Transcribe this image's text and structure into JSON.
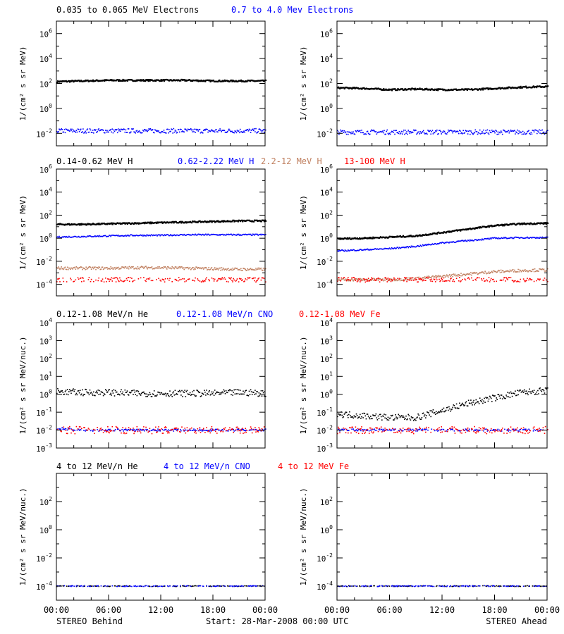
{
  "colors": {
    "black": "#000000",
    "blue": "#0000ff",
    "brown": "#c08060",
    "red": "#ff0000"
  },
  "panels": [
    {
      "legend": [
        {
          "text": "0.035 to 0.065 MeV Electrons",
          "color": "black"
        },
        {
          "text": "0.7 to 4.0 Mev Electrons",
          "color": "blue"
        }
      ],
      "ylabel": "1/(cm² s sr MeV)",
      "scale": "log",
      "ylim": [
        -3,
        7
      ],
      "ticks": [
        {
          "v": 6,
          "label": "10",
          "exp": "6"
        },
        {
          "v": 4,
          "label": "10",
          "exp": "4"
        },
        {
          "v": 2,
          "label": "10",
          "exp": "2"
        },
        {
          "v": 0,
          "label": "10",
          "exp": "0"
        },
        {
          "v": -2,
          "label": "10",
          "exp": "-2"
        }
      ]
    },
    {
      "legend": [
        {
          "text": "0.14-0.62 MeV H",
          "color": "black"
        },
        {
          "text": "0.62-2.22 MeV H",
          "color": "blue"
        },
        {
          "text": "2.2-12 MeV H",
          "color": "brown"
        },
        {
          "text": "13-100 MeV H",
          "color": "red"
        }
      ],
      "ylabel": "1/(cm² s sr MeV)",
      "scale": "log",
      "ylim": [
        -5,
        6
      ],
      "ticks": [
        {
          "v": 6,
          "label": "10",
          "exp": "6"
        },
        {
          "v": 4,
          "label": "10",
          "exp": "4"
        },
        {
          "v": 2,
          "label": "10",
          "exp": "2"
        },
        {
          "v": 0,
          "label": "10",
          "exp": "0"
        },
        {
          "v": -2,
          "label": "10",
          "exp": "-2"
        },
        {
          "v": -4,
          "label": "10",
          "exp": "-4"
        }
      ]
    },
    {
      "legend": [
        {
          "text": "0.12-1.08 MeV/n He",
          "color": "black"
        },
        {
          "text": "0.12-1.08 MeV/n CNO",
          "color": "blue"
        },
        {
          "text": "0.12-1.08 MeV Fe",
          "color": "red"
        }
      ],
      "ylabel": "1/(cm² s sr MeV/nuc.)",
      "scale": "log",
      "ylim": [
        -3,
        4
      ],
      "ticks": [
        {
          "v": 4,
          "label": "10",
          "exp": "4"
        },
        {
          "v": 3,
          "label": "10",
          "exp": "3"
        },
        {
          "v": 2,
          "label": "10",
          "exp": "2"
        },
        {
          "v": 1,
          "label": "10",
          "exp": "1"
        },
        {
          "v": 0,
          "label": "10",
          "exp": "0"
        },
        {
          "v": -1,
          "label": "10",
          "exp": "-1"
        },
        {
          "v": -2,
          "label": "10",
          "exp": "-2"
        },
        {
          "v": -3,
          "label": "10",
          "exp": "-3"
        }
      ]
    },
    {
      "legend": [
        {
          "text": "4 to 12 MeV/n He",
          "color": "black"
        },
        {
          "text": "4 to 12 MeV/n CNO",
          "color": "blue"
        },
        {
          "text": "4 to 12 MeV Fe",
          "color": "red"
        }
      ],
      "ylabel": "1/(cm² s sr MeV/nuc.)",
      "scale": "log",
      "ylim": [
        -5,
        4
      ],
      "ticks": [
        {
          "v": 2,
          "label": "10",
          "exp": "2"
        },
        {
          "v": 0,
          "label": "10",
          "exp": "0"
        },
        {
          "v": -2,
          "label": "10",
          "exp": "-2"
        },
        {
          "v": -4,
          "label": "10",
          "exp": "-4"
        }
      ]
    }
  ],
  "xaxis": {
    "ticks": [
      "00:00",
      "06:00",
      "12:00",
      "18:00",
      "00:00"
    ],
    "range_hours": [
      0,
      24
    ]
  },
  "footer": {
    "left": "STEREO Behind",
    "center": "Start: 28-Mar-2008 00:00 UTC",
    "right": "STEREO Ahead"
  },
  "chart_data": [
    {
      "type": "scatter",
      "title": "0.035 to 0.065 MeV Electrons / 0.7 to 4.0 Mev Electrons",
      "ylabel": "1/(cm² s sr MeV)",
      "ylog": true,
      "subplots": [
        {
          "name": "STEREO Behind",
          "series": [
            {
              "name": "0.035 to 0.065 MeV Electrons",
              "color": "black",
              "x_hours": [
                0,
                3,
                6,
                9,
                12,
                15,
                18,
                21,
                24
              ],
              "log10_y": [
                2.15,
                2.2,
                2.25,
                2.25,
                2.25,
                2.25,
                2.2,
                2.2,
                2.2
              ]
            },
            {
              "name": "0.7 to 4.0 Mev Electrons",
              "color": "blue",
              "x_hours": [
                0,
                3,
                6,
                9,
                12,
                15,
                18,
                21,
                24
              ],
              "log10_y": [
                -1.8,
                -1.8,
                -1.8,
                -1.8,
                -1.8,
                -1.8,
                -1.8,
                -1.8,
                -1.8
              ]
            }
          ]
        },
        {
          "name": "STEREO Ahead",
          "series": [
            {
              "name": "0.035 to 0.065 MeV Electrons",
              "color": "black",
              "x_hours": [
                0,
                3,
                6,
                9,
                12,
                15,
                18,
                21,
                24
              ],
              "log10_y": [
                1.65,
                1.6,
                1.5,
                1.55,
                1.5,
                1.5,
                1.6,
                1.7,
                1.75
              ]
            },
            {
              "name": "0.7 to 4.0 Mev Electrons",
              "color": "blue",
              "x_hours": [
                0,
                3,
                6,
                9,
                12,
                15,
                18,
                21,
                24
              ],
              "log10_y": [
                -1.9,
                -1.9,
                -1.9,
                -1.9,
                -1.9,
                -1.9,
                -1.9,
                -1.9,
                -1.9
              ]
            }
          ]
        }
      ]
    },
    {
      "type": "scatter",
      "title": "0.14-0.62 MeV H / 0.62-2.22 MeV H / 2.2-12 MeV H / 13-100 MeV H",
      "ylabel": "1/(cm² s sr MeV)",
      "ylog": true,
      "subplots": [
        {
          "name": "STEREO Behind",
          "series": [
            {
              "name": "0.14-0.62 MeV H",
              "color": "black",
              "x_hours": [
                0,
                3,
                6,
                9,
                12,
                15,
                18,
                21,
                24
              ],
              "log10_y": [
                1.2,
                1.2,
                1.25,
                1.3,
                1.35,
                1.4,
                1.45,
                1.5,
                1.5
              ]
            },
            {
              "name": "0.62-2.22 MeV H",
              "color": "blue",
              "x_hours": [
                0,
                3,
                6,
                9,
                12,
                15,
                18,
                21,
                24
              ],
              "log10_y": [
                0.1,
                0.15,
                0.2,
                0.25,
                0.25,
                0.3,
                0.3,
                0.3,
                0.3
              ]
            },
            {
              "name": "2.2-12 MeV H",
              "color": "brown",
              "x_hours": [
                0,
                3,
                6,
                9,
                12,
                15,
                18,
                21,
                24
              ],
              "log10_y": [
                -2.6,
                -2.6,
                -2.6,
                -2.55,
                -2.55,
                -2.6,
                -2.65,
                -2.7,
                -2.7
              ]
            },
            {
              "name": "13-100 MeV H",
              "color": "red",
              "x_hours": [
                0,
                3,
                6,
                9,
                12,
                15,
                18,
                21,
                24
              ],
              "log10_y": [
                -3.6,
                -3.6,
                -3.6,
                -3.6,
                -3.6,
                -3.6,
                -3.6,
                -3.6,
                -3.6
              ]
            }
          ]
        },
        {
          "name": "STEREO Ahead",
          "series": [
            {
              "name": "0.14-0.62 MeV H",
              "color": "black",
              "x_hours": [
                0,
                3,
                6,
                9,
                12,
                15,
                18,
                21,
                24
              ],
              "log10_y": [
                -0.05,
                0.0,
                0.1,
                0.2,
                0.5,
                0.8,
                1.1,
                1.25,
                1.3
              ]
            },
            {
              "name": "0.62-2.22 MeV H",
              "color": "blue",
              "x_hours": [
                0,
                3,
                6,
                9,
                12,
                15,
                18,
                21,
                24
              ],
              "log10_y": [
                -1.1,
                -1.0,
                -0.9,
                -0.7,
                -0.4,
                -0.2,
                0.0,
                0.05,
                0.05
              ]
            },
            {
              "name": "2.2-12 MeV H",
              "color": "brown",
              "x_hours": [
                0,
                3,
                6,
                9,
                12,
                15,
                18,
                21,
                24
              ],
              "log10_y": [
                -3.6,
                -3.6,
                -3.6,
                -3.5,
                -3.3,
                -3.1,
                -2.9,
                -2.8,
                -2.75
              ]
            },
            {
              "name": "13-100 MeV H",
              "color": "red",
              "x_hours": [
                0,
                3,
                6,
                9,
                12,
                15,
                18,
                21,
                24
              ],
              "log10_y": [
                -3.6,
                -3.6,
                -3.6,
                -3.6,
                -3.6,
                -3.6,
                -3.6,
                -3.6,
                -3.6
              ]
            }
          ]
        }
      ]
    },
    {
      "type": "scatter",
      "title": "0.12-1.08 MeV/n He / 0.12-1.08 MeV/n CNO / 0.12-1.08 MeV Fe",
      "ylabel": "1/(cm² s sr MeV/nuc.)",
      "ylog": true,
      "subplots": [
        {
          "name": "STEREO Behind",
          "series": [
            {
              "name": "0.12-1.08 MeV/n He",
              "color": "black",
              "x_hours": [
                0,
                3,
                6,
                9,
                12,
                15,
                18,
                21,
                24
              ],
              "log10_y": [
                0.15,
                0.1,
                0.1,
                0.05,
                0.05,
                0.05,
                0.05,
                0.1,
                0.05
              ]
            },
            {
              "name": "0.12-1.08 MeV/n CNO",
              "color": "blue",
              "x_hours": [
                0,
                3,
                6,
                9,
                12,
                15,
                18,
                21,
                24
              ],
              "log10_y": [
                -1.9,
                -2.0,
                -2.0,
                -2.0,
                -2.0,
                -2.0,
                -2.0,
                -2.0,
                -2.0
              ]
            },
            {
              "name": "0.12-1.08 MeV Fe",
              "color": "red",
              "x_hours": [
                0,
                3,
                6,
                9,
                12,
                15,
                18,
                21,
                24
              ],
              "log10_y": [
                -2.0,
                -2.0,
                -2.0,
                -2.0,
                -2.0,
                -2.0,
                -2.0,
                -2.0,
                -2.0
              ]
            }
          ]
        },
        {
          "name": "STEREO Ahead",
          "series": [
            {
              "name": "0.12-1.08 MeV/n He",
              "color": "black",
              "x_hours": [
                0,
                3,
                6,
                9,
                12,
                15,
                18,
                21,
                24
              ],
              "log10_y": [
                -1.1,
                -1.2,
                -1.3,
                -1.3,
                -0.9,
                -0.5,
                -0.2,
                0.1,
                0.2
              ]
            },
            {
              "name": "0.12-1.08 MeV/n CNO",
              "color": "blue",
              "x_hours": [
                0,
                3,
                6,
                9,
                12,
                15,
                18,
                21,
                24
              ],
              "log10_y": [
                -2.0,
                -2.0,
                -2.0,
                -2.0,
                -2.0,
                -2.0,
                -2.0,
                -2.0,
                -2.0
              ]
            },
            {
              "name": "0.12-1.08 MeV Fe",
              "color": "red",
              "x_hours": [
                0,
                3,
                6,
                9,
                12,
                15,
                18,
                21,
                24
              ],
              "log10_y": [
                -2.0,
                -2.0,
                -2.0,
                -2.0,
                -2.0,
                -2.0,
                -2.0,
                -2.0,
                -2.0
              ]
            }
          ]
        }
      ]
    },
    {
      "type": "scatter",
      "title": "4 to 12 MeV/n He / 4 to 12 MeV/n CNO / 4 to 12 MeV Fe",
      "ylabel": "1/(cm² s sr MeV/nuc.)",
      "ylog": true,
      "subplots": [
        {
          "name": "STEREO Behind",
          "series": [
            {
              "name": "4 to 12 MeV/n He",
              "color": "black",
              "x_hours": [
                0,
                3,
                6,
                9,
                12,
                15,
                18,
                21,
                24
              ],
              "log10_y": [
                -4.0,
                -4.0,
                -4.0,
                -4.0,
                -4.0,
                -4.0,
                -4.0,
                -4.0,
                -4.0
              ]
            },
            {
              "name": "4 to 12 MeV/n CNO",
              "color": "blue",
              "x_hours": [
                0,
                3,
                6,
                9,
                12,
                15,
                18,
                21,
                24
              ],
              "log10_y": [
                -4.0,
                -4.0,
                -4.0,
                -4.0,
                -4.0,
                -4.0,
                -4.0,
                -4.0,
                -4.0
              ]
            }
          ]
        },
        {
          "name": "STEREO Ahead",
          "series": [
            {
              "name": "4 to 12 MeV/n He",
              "color": "black",
              "x_hours": [
                0,
                3,
                6,
                9,
                12,
                15,
                18,
                21,
                24
              ],
              "log10_y": [
                -4.0,
                -4.0,
                -4.0,
                -4.0,
                -4.0,
                -4.0,
                -4.0,
                -4.0,
                -4.0
              ]
            },
            {
              "name": "4 to 12 MeV/n CNO",
              "color": "blue",
              "x_hours": [
                0,
                3,
                6,
                9,
                12,
                15,
                18,
                21,
                24
              ],
              "log10_y": [
                -4.0,
                -4.0,
                -4.0,
                -4.0,
                -4.0,
                -4.0,
                -4.0,
                -4.0,
                -4.0
              ]
            }
          ]
        }
      ]
    }
  ]
}
